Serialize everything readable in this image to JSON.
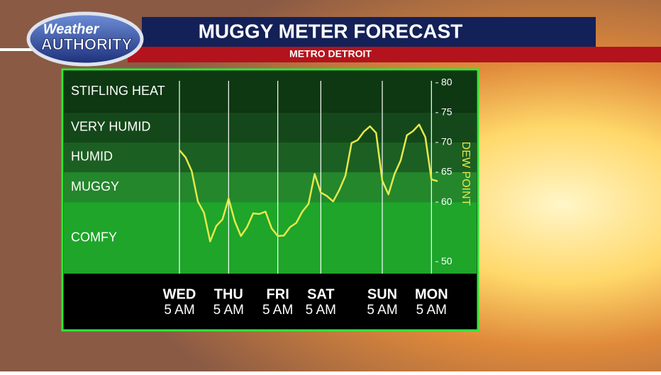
{
  "chart_data": {
    "type": "line",
    "logo": {
      "line1": "Weather",
      "line2": "AUTHORITY"
    },
    "title": "MUGGY METER FORECAST",
    "subtitle": "METRO DETROIT",
    "y_axis_label": "DEW POINT",
    "color": "#e6e84c",
    "ylim": [
      48,
      82
    ],
    "yticks": [
      50,
      60,
      65,
      70,
      75,
      80
    ],
    "bands": [
      "COMFY",
      "MUGGY",
      "HUMID",
      "VERY HUMID",
      "STIFLING HEAT"
    ],
    "band_colors": [
      "#1ea52a",
      "#24872c",
      "#1c5f22",
      "#14481a",
      "#0d3812"
    ],
    "categories": [
      "WED",
      null,
      null,
      null,
      null,
      null,
      null,
      null,
      "THU",
      null,
      null,
      null,
      null,
      null,
      null,
      null,
      "FRI",
      null,
      null,
      null,
      null,
      null,
      null,
      "SAT",
      null,
      null,
      null,
      null,
      null,
      null,
      null,
      null,
      null,
      "SUN",
      null,
      null,
      null,
      null,
      null,
      null,
      null,
      "MON",
      null
    ],
    "time_labels": [
      "5 AM",
      null,
      null,
      null,
      null,
      null,
      null,
      null,
      "5 AM",
      null,
      null,
      null,
      null,
      null,
      null,
      null,
      "5 AM",
      null,
      null,
      null,
      null,
      null,
      null,
      "5 AM",
      null,
      null,
      null,
      null,
      null,
      null,
      null,
      null,
      null,
      "5 AM",
      null,
      null,
      null,
      null,
      null,
      null,
      null,
      "5 AM",
      null
    ],
    "values": [
      68.7,
      67.5,
      65.2,
      60.1,
      58.2,
      53.4,
      56,
      57.1,
      60.6,
      56.8,
      54.3,
      55.8,
      58.1,
      58,
      58.4,
      55.6,
      54.3,
      54.4,
      55.8,
      56.5,
      58.4,
      59.7,
      64.7,
      61.6,
      61,
      60.1,
      62,
      64.4,
      69.9,
      70.4,
      71.8,
      72.7,
      71.6,
      63.6,
      61.3,
      64.7,
      67,
      71.2,
      71.9,
      73,
      70.9,
      63.8,
      63.5
    ]
  }
}
